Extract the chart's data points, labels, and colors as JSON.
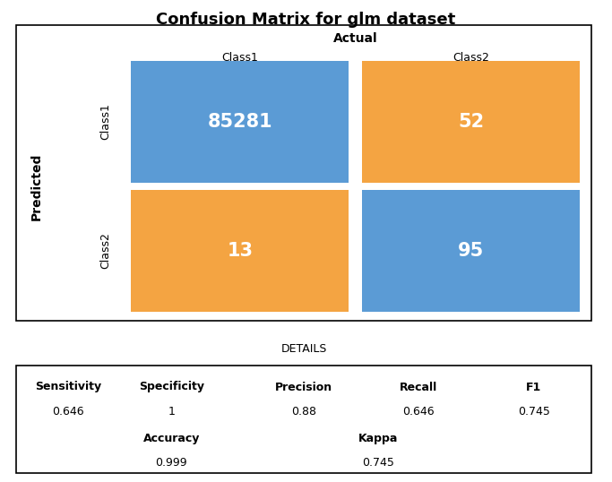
{
  "title": "Confusion Matrix for glm dataset",
  "matrix": [
    [
      85281,
      52
    ],
    [
      13,
      95
    ]
  ],
  "actual_label": "Actual",
  "predicted_label": "Predicted",
  "class_labels": [
    "Class1",
    "Class2"
  ],
  "cell_colors": {
    "00": "#5B9BD5",
    "01": "#F4A442",
    "10": "#F4A442",
    "11": "#5B9BD5"
  },
  "text_color": "white",
  "details_title": "DETAILS",
  "metrics": {
    "Sensitivity": "0.646",
    "Specificity": "1",
    "Precision": "0.88",
    "Recall": "0.646",
    "F1": "0.745"
  },
  "metrics_row2": {
    "Accuracy": "0.999",
    "Kappa": "0.745"
  },
  "background_color": "white"
}
